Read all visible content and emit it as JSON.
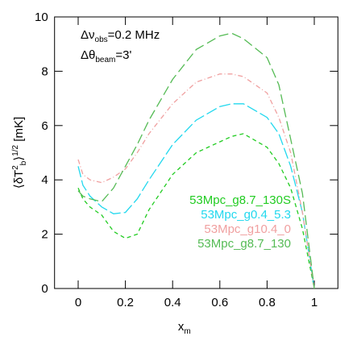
{
  "chart_data": {
    "type": "line",
    "x_label": [
      {
        "text": "x"
      },
      {
        "sub": "m"
      }
    ],
    "y_label": [
      {
        "text": "⟨δT"
      },
      {
        "sup": "2"
      },
      {
        "sub": "b"
      },
      {
        "text": "⟩"
      },
      {
        "sup": "1/2"
      },
      {
        "text": " [mK]"
      }
    ],
    "annotations": [
      [
        {
          "text": "Δν"
        },
        {
          "sub": "obs"
        },
        {
          "text": "=0.2 MHz"
        }
      ],
      [
        {
          "text": "Δθ"
        },
        {
          "sub": "beam"
        },
        {
          "text": "=3'"
        }
      ]
    ],
    "x": [
      0,
      0.02,
      0.05,
      0.1,
      0.15,
      0.2,
      0.25,
      0.3,
      0.4,
      0.5,
      0.6,
      0.65,
      0.7,
      0.8,
      0.85,
      0.9,
      0.95,
      1.0
    ],
    "series": [
      {
        "name": "53Mpc_g8.7_130S",
        "color": "#22cc22",
        "dash": "5 4",
        "values": [
          3.7,
          3.3,
          3.0,
          2.7,
          2.1,
          1.85,
          2.0,
          2.9,
          4.2,
          5.0,
          5.4,
          5.6,
          5.7,
          5.2,
          4.6,
          3.7,
          2.2,
          0
        ]
      },
      {
        "name": "53Mpc_g0.4_5.3",
        "color": "#22d8ee",
        "dash": "14 4",
        "values": [
          4.5,
          3.8,
          3.4,
          3.0,
          2.75,
          2.8,
          3.3,
          4.0,
          5.3,
          6.2,
          6.7,
          6.8,
          6.8,
          6.3,
          5.7,
          4.5,
          2.8,
          0
        ]
      },
      {
        "name": "53Mpc_g10.4_0",
        "color": "#f0a0a0",
        "dash": "6 3 1 3",
        "values": [
          4.75,
          4.2,
          4.0,
          3.9,
          4.1,
          4.4,
          5.0,
          5.7,
          6.8,
          7.6,
          7.9,
          7.9,
          7.8,
          7.2,
          6.3,
          5.0,
          2.8,
          0
        ]
      },
      {
        "name": "53Mpc_g8.7_130",
        "color": "#55bb55",
        "dash": "12 5",
        "values": [
          3.6,
          3.4,
          3.3,
          3.2,
          3.7,
          4.5,
          5.3,
          6.2,
          7.7,
          8.8,
          9.3,
          9.4,
          9.2,
          8.5,
          7.5,
          5.5,
          3.5,
          0
        ]
      }
    ],
    "xlim": [
      -0.1,
      1.1
    ],
    "ylim": [
      0,
      10
    ],
    "xticks": [
      0,
      0.2,
      0.4,
      0.6,
      0.8,
      1
    ],
    "yticks": [
      0,
      2,
      4,
      6,
      8,
      10
    ]
  }
}
